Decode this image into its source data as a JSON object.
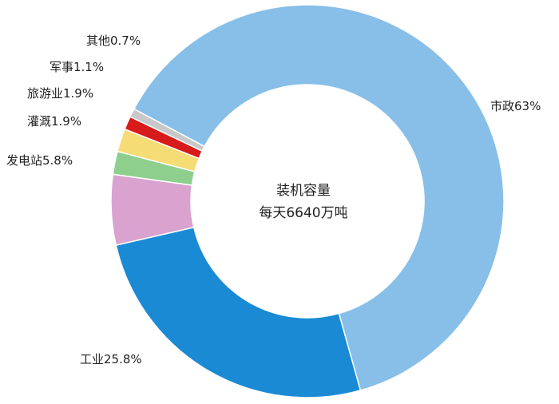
{
  "chart_data": {
    "type": "pie",
    "donut": true,
    "center_text": [
      "装机容量",
      "每天6640万吨"
    ],
    "slices": [
      {
        "label": "市政63%",
        "value": 63,
        "color": "#87bfe8"
      },
      {
        "label": "工业25.8%",
        "value": 25.8,
        "color": "#1a8ad4"
      },
      {
        "label": "发电站5.8%",
        "value": 5.8,
        "color": "#d9a2cf"
      },
      {
        "label": "灌溉1.9%",
        "value": 1.9,
        "color": "#8ecf8e"
      },
      {
        "label": "旅游业1.9%",
        "value": 1.9,
        "color": "#f6dc74"
      },
      {
        "label": "军事1.1%",
        "value": 1.1,
        "color": "#d71a1a"
      },
      {
        "label": "其他0.7%",
        "value": 0.7,
        "color": "#c8c8c8"
      }
    ]
  }
}
